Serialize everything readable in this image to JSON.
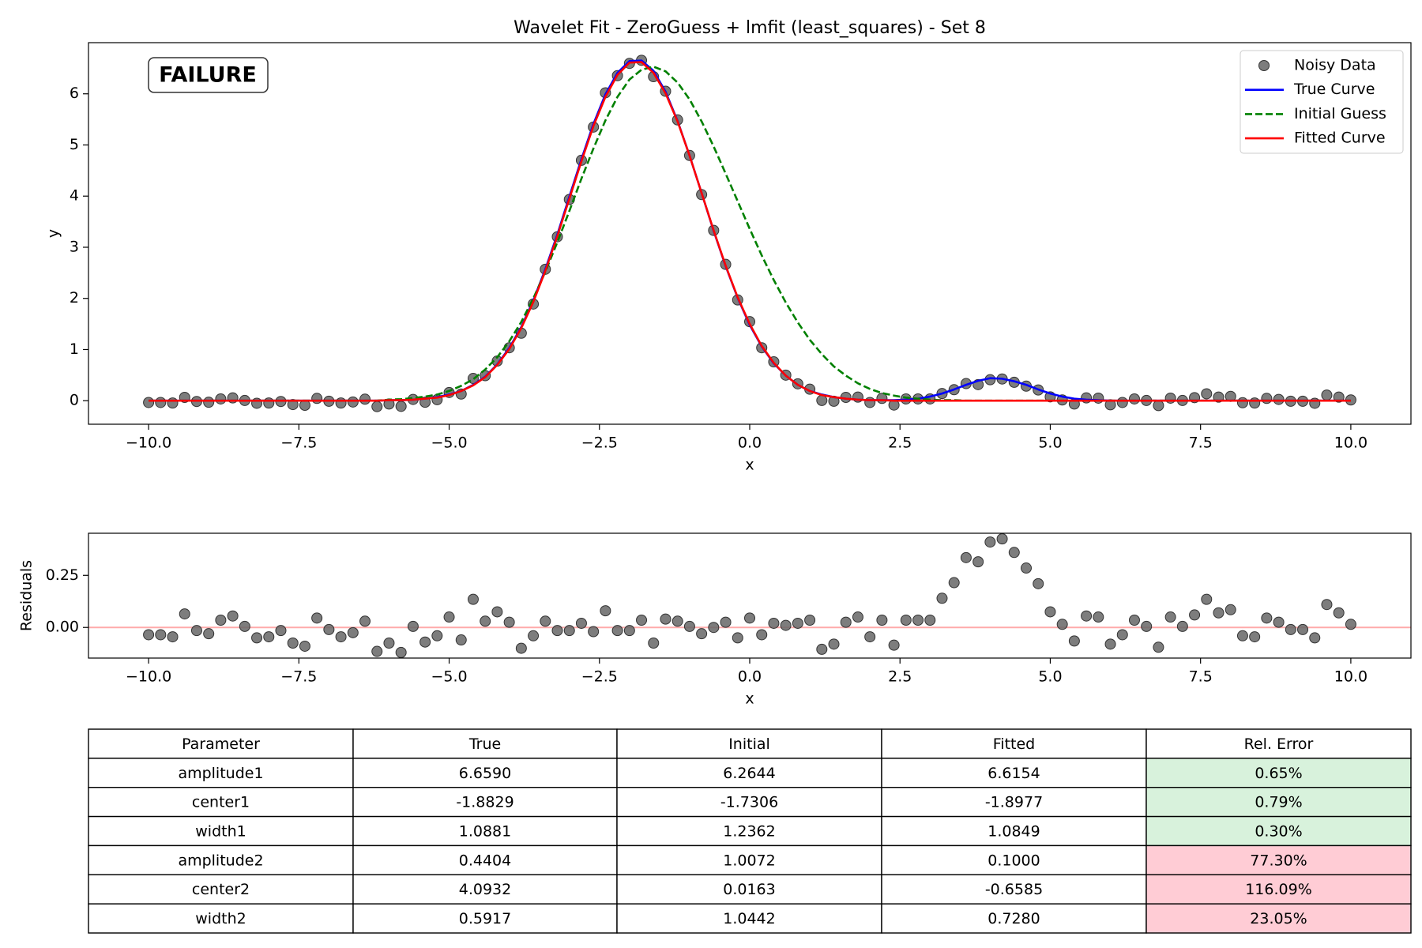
{
  "chart_data": [
    {
      "type": "line",
      "title": "Wavelet Fit - ZeroGuess + lmfit (least_squares) - Set 8",
      "annotation": "FAILURE",
      "annotation_color": "#ff0000",
      "xlabel": "x",
      "ylabel": "y",
      "legend": "upper right",
      "xlim": [
        -11,
        11
      ],
      "ylim": [
        -0.46,
        7.0
      ],
      "xticks": [
        {
          "value": -10,
          "label": "−10.0"
        },
        {
          "value": -7.5,
          "label": "−7.5"
        },
        {
          "value": -5,
          "label": "−5.0"
        },
        {
          "value": -2.5,
          "label": "−2.5"
        },
        {
          "value": 0,
          "label": "0.0"
        },
        2.5,
        {
          "value": 5,
          "label": "5.0"
        },
        7.5,
        {
          "value": 10,
          "label": "10.0"
        }
      ],
      "yticks": [
        0,
        1,
        2,
        3,
        4,
        5,
        6
      ],
      "x": [
        -10,
        -9.8,
        -9.6,
        -9.4,
        -9.2,
        -9,
        -8.8,
        -8.6,
        -8.4,
        -8.2,
        -8,
        -7.8,
        -7.6,
        -7.4,
        -7.2,
        -7,
        -6.8,
        -6.6,
        -6.4,
        -6.2,
        -6,
        -5.8,
        -5.6,
        -5.4,
        -5.2,
        -5,
        -4.8,
        -4.6,
        -4.4,
        -4.2,
        -4,
        -3.8,
        -3.6,
        -3.4,
        -3.2,
        -3,
        -2.8,
        -2.6,
        -2.4,
        -2.2,
        -2,
        -1.8,
        -1.6,
        -1.4,
        -1.2,
        -1,
        -0.8,
        -0.6,
        -0.4,
        -0.2,
        0,
        0.2,
        0.4,
        0.6,
        0.8,
        1,
        1.2,
        1.4,
        1.6,
        1.8,
        2,
        2.2,
        2.4,
        2.6,
        2.8,
        3,
        3.2,
        3.4,
        3.6,
        3.8,
        4,
        4.2,
        4.4,
        4.6,
        4.8,
        5,
        5.2,
        5.4,
        5.6,
        5.8,
        6,
        6.2,
        6.4,
        6.6,
        6.8,
        7,
        7.2,
        7.4,
        7.6,
        7.8,
        8,
        8.2,
        8.4,
        8.6,
        8.8,
        9,
        9.2,
        9.4,
        9.6,
        9.8,
        10
      ],
      "series": [
        {
          "name": "Noisy Data",
          "style": "markers",
          "color": "#666666",
          "values": [
            -0.035,
            -0.035,
            -0.045,
            0.065,
            -0.015,
            -0.03,
            0.035,
            0.055,
            0.005,
            -0.05,
            -0.045,
            -0.015,
            -0.075,
            -0.09,
            0.045,
            -0.01,
            -0.045,
            -0.025,
            0.03,
            -0.115,
            -0.065,
            -0.11,
            0.025,
            -0.03,
            0.02,
            0.16,
            0.13,
            0.435,
            0.49,
            0.775,
            1.035,
            1.32,
            1.89,
            2.57,
            3.205,
            3.935,
            4.7,
            5.35,
            6.02,
            6.355,
            6.595,
            6.655,
            6.335,
            6.05,
            5.49,
            4.795,
            4.03,
            3.33,
            2.665,
            1.97,
            1.545,
            1.035,
            0.76,
            0.5,
            0.33,
            0.225,
            0.005,
            -0.01,
            0.065,
            0.07,
            -0.035,
            0.045,
            -0.085,
            0.035,
            0.035,
            0.035,
            0.14,
            0.215,
            0.335,
            0.315,
            0.41,
            0.425,
            0.36,
            0.285,
            0.21,
            0.075,
            0.015,
            -0.065,
            0.055,
            0.05,
            -0.08,
            -0.035,
            0.035,
            0.005,
            -0.095,
            0.05,
            0.005,
            0.06,
            0.135,
            0.07,
            0.085,
            -0.04,
            -0.045,
            0.045,
            0.025,
            -0.01,
            -0.01,
            -0.05,
            0.11,
            0.07,
            0.015
          ]
        },
        {
          "name": "True Curve",
          "style": "solid",
          "color": "#0000ff",
          "values": [
            0,
            0,
            0,
            0,
            0,
            0,
            0,
            0,
            0,
            0,
            0,
            0,
            0,
            0,
            0,
            0,
            0,
            0,
            0,
            0,
            0.01,
            0.01,
            0.02,
            0.04,
            0.07,
            0.12,
            0.19,
            0.31,
            0.47,
            0.71,
            1.03,
            1.44,
            1.96,
            2.57,
            3.25,
            3.99,
            4.72,
            5.41,
            5.99,
            6.41,
            6.64,
            6.65,
            6.45,
            6.04,
            5.47,
            4.79,
            4.06,
            3.32,
            2.63,
            2.01,
            1.48,
            1.06,
            0.73,
            0.49,
            0.31,
            0.19,
            0.12,
            0.07,
            0.04,
            0.02,
            0.01,
            0.01,
            0.01,
            0.02,
            0.04,
            0.08,
            0.14,
            0.22,
            0.31,
            0.39,
            0.44,
            0.43,
            0.38,
            0.31,
            0.22,
            0.14,
            0.08,
            0.04,
            0.02,
            0.01,
            0,
            0,
            0,
            0,
            0,
            0,
            0,
            0,
            0,
            0,
            0,
            0,
            0,
            0,
            0,
            0,
            0,
            0,
            0,
            0,
            0
          ]
        },
        {
          "name": "Initial Guess",
          "style": "dashed",
          "color": "#008000",
          "values": [
            0,
            0,
            0,
            0,
            0,
            0,
            0,
            0,
            0,
            0,
            0,
            0,
            0,
            0,
            0,
            0,
            0,
            0,
            0,
            0,
            0.02,
            0.03,
            0.05,
            0.08,
            0.12,
            0.19,
            0.29,
            0.42,
            0.61,
            0.85,
            1.16,
            1.54,
            2.0,
            2.52,
            3.1,
            3.71,
            4.34,
            4.93,
            5.48,
            5.94,
            6.28,
            6.47,
            6.53,
            6.44,
            6.22,
            5.89,
            5.46,
            4.97,
            4.44,
            3.9,
            3.36,
            2.84,
            2.36,
            1.92,
            1.53,
            1.19,
            0.91,
            0.67,
            0.49,
            0.34,
            0.23,
            0.15,
            0.1,
            0.06,
            0.04,
            0.02,
            0.01,
            0.01,
            0,
            0,
            0,
            0,
            0,
            0,
            0,
            0,
            0,
            0,
            0,
            0,
            0,
            0,
            0,
            0,
            0,
            0,
            0,
            0,
            0,
            0,
            0,
            0,
            0,
            0,
            0,
            0,
            0,
            0,
            0,
            0,
            0
          ]
        },
        {
          "name": "Fitted Curve",
          "style": "solid",
          "color": "#ff0000",
          "values": [
            0,
            0,
            0,
            0,
            0,
            0,
            0,
            0,
            0,
            0,
            0,
            0,
            0,
            0,
            0,
            0,
            0,
            0,
            0,
            0,
            0.01,
            0.01,
            0.02,
            0.04,
            0.06,
            0.11,
            0.19,
            0.3,
            0.46,
            0.7,
            1.01,
            1.42,
            1.93,
            2.54,
            3.22,
            3.95,
            4.68,
            5.37,
            5.94,
            6.37,
            6.61,
            6.62,
            6.41,
            6.01,
            5.46,
            4.79,
            4.06,
            3.33,
            2.64,
            2.02,
            1.5,
            1.07,
            0.74,
            0.49,
            0.31,
            0.19,
            0.11,
            0.07,
            0.04,
            0.02,
            0.01,
            0.01,
            0,
            0,
            0,
            0,
            0,
            0,
            0,
            0,
            0,
            0,
            0,
            0,
            0,
            0,
            0,
            0,
            0,
            0,
            0,
            0,
            0,
            0,
            0,
            0,
            0,
            0,
            0,
            0,
            0,
            0,
            0,
            0,
            0,
            0,
            0,
            0,
            0,
            0,
            0
          ]
        }
      ]
    },
    {
      "type": "scatter",
      "xlabel": "x",
      "ylabel": "Residuals",
      "xlim": [
        -11,
        11
      ],
      "ylim": [
        -0.147,
        0.452
      ],
      "xticks": [
        {
          "value": -10,
          "label": "−10.0"
        },
        {
          "value": -7.5,
          "label": "−7.5"
        },
        {
          "value": -5,
          "label": "−5.0"
        },
        {
          "value": -2.5,
          "label": "−2.5"
        },
        {
          "value": 0,
          "label": "0.0"
        },
        2.5,
        {
          "value": 5,
          "label": "5.0"
        },
        7.5,
        {
          "value": 10,
          "label": "10.0"
        }
      ],
      "yticks": [
        {
          "value": 0,
          "label": "0.00"
        },
        0.25
      ],
      "hline": 0,
      "hline_color": "#ffaaaa",
      "color": "#666666",
      "x": [
        -10,
        -9.8,
        -9.6,
        -9.4,
        -9.2,
        -9,
        -8.8,
        -8.6,
        -8.4,
        -8.2,
        -8,
        -7.8,
        -7.6,
        -7.4,
        -7.2,
        -7,
        -6.8,
        -6.6,
        -6.4,
        -6.2,
        -6,
        -5.8,
        -5.6,
        -5.4,
        -5.2,
        -5,
        -4.8,
        -4.6,
        -4.4,
        -4.2,
        -4,
        -3.8,
        -3.6,
        -3.4,
        -3.2,
        -3,
        -2.8,
        -2.6,
        -2.4,
        -2.2,
        -2,
        -1.8,
        -1.6,
        -1.4,
        -1.2,
        -1,
        -0.8,
        -0.6,
        -0.4,
        -0.2,
        0,
        0.2,
        0.4,
        0.6,
        0.8,
        1,
        1.2,
        1.4,
        1.6,
        1.8,
        2,
        2.2,
        2.4,
        2.6,
        2.8,
        3,
        3.2,
        3.4,
        3.6,
        3.8,
        4,
        4.2,
        4.4,
        4.6,
        4.8,
        5,
        5.2,
        5.4,
        5.6,
        5.8,
        6,
        6.2,
        6.4,
        6.6,
        6.8,
        7,
        7.2,
        7.4,
        7.6,
        7.8,
        8,
        8.2,
        8.4,
        8.6,
        8.8,
        9,
        9.2,
        9.4,
        9.6,
        9.8,
        10
      ],
      "values": [
        -0.035,
        -0.035,
        -0.045,
        0.065,
        -0.015,
        -0.03,
        0.035,
        0.055,
        0.005,
        -0.05,
        -0.045,
        -0.015,
        -0.075,
        -0.09,
        0.045,
        -0.01,
        -0.045,
        -0.025,
        0.03,
        -0.115,
        -0.075,
        -0.12,
        0.005,
        -0.07,
        -0.04,
        0.05,
        -0.06,
        0.135,
        0.03,
        0.075,
        0.025,
        -0.1,
        -0.04,
        0.03,
        -0.015,
        -0.015,
        0.02,
        -0.02,
        0.08,
        -0.015,
        -0.015,
        0.035,
        -0.075,
        0.04,
        0.03,
        0.005,
        -0.03,
        0,
        0.025,
        -0.05,
        0.045,
        -0.035,
        0.02,
        0.01,
        0.02,
        0.035,
        -0.105,
        -0.08,
        0.025,
        0.05,
        -0.045,
        0.035,
        -0.085,
        0.035,
        0.035,
        0.035,
        0.14,
        0.215,
        0.335,
        0.315,
        0.41,
        0.425,
        0.36,
        0.285,
        0.21,
        0.075,
        0.015,
        -0.065,
        0.055,
        0.05,
        -0.08,
        -0.035,
        0.035,
        0.005,
        -0.095,
        0.05,
        0.005,
        0.06,
        0.135,
        0.07,
        0.085,
        -0.04,
        -0.045,
        0.045,
        0.025,
        -0.01,
        -0.01,
        -0.05,
        0.11,
        0.07,
        0.015
      ]
    }
  ],
  "table": {
    "header": [
      "Parameter",
      "True",
      "Initial",
      "Fitted",
      "Rel. Error"
    ],
    "rows": [
      [
        "amplitude1",
        "6.6590",
        "6.2644",
        "6.6154",
        "0.65%"
      ],
      [
        "center1",
        "-1.8829",
        "-1.7306",
        "-1.8977",
        "0.79%"
      ],
      [
        "width1",
        "1.0881",
        "1.2362",
        "1.0849",
        "0.30%"
      ],
      [
        "amplitude2",
        "0.4404",
        "1.0072",
        "0.1000",
        "77.30%"
      ],
      [
        "center2",
        "4.0932",
        "0.0163",
        "-0.6585",
        "116.09%"
      ],
      [
        "width2",
        "0.5917",
        "1.0442",
        "0.7280",
        "23.05%"
      ]
    ],
    "error_colors": [
      "#d8f2dc",
      "#d8f2dc",
      "#d8f2dc",
      "#ffccd5",
      "#ffccd5",
      "#ffccd5"
    ]
  }
}
